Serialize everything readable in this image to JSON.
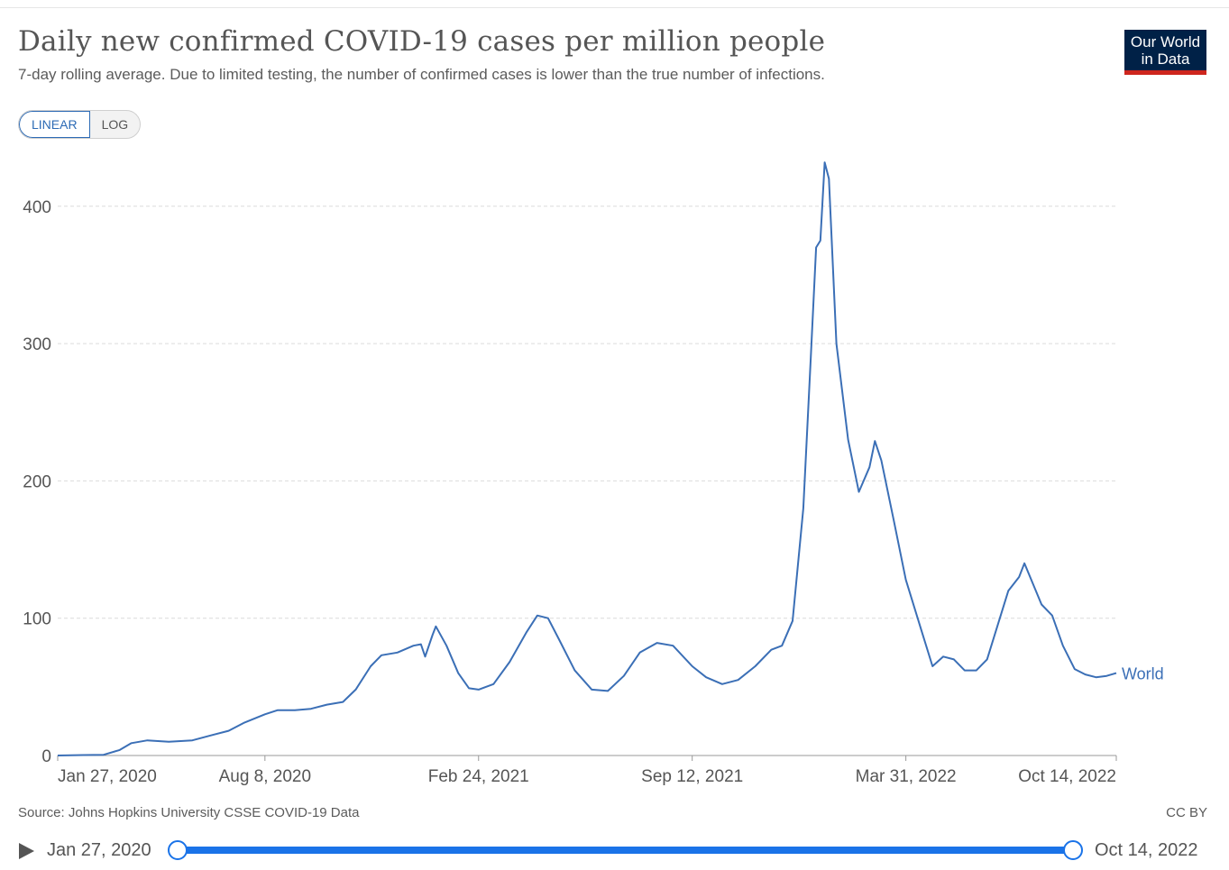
{
  "header": {
    "title": "Daily new confirmed COVID-19 cases per million people",
    "subtitle": "7-day rolling average. Due to limited testing, the number of confirmed cases is lower than the true number of infections.",
    "logo_line1": "Our World",
    "logo_line2": "in Data"
  },
  "controls": {
    "linear_label": "LINEAR",
    "log_label": "LOG",
    "active_scale": "linear"
  },
  "chart_data": {
    "type": "line",
    "title": "Daily new confirmed COVID-19 cases per million people",
    "subtitle": "7-day rolling average. Due to limited testing, the number of confirmed cases is lower than the true number of infections.",
    "xlabel": "",
    "ylabel": "",
    "x_range": [
      "2020-01-27",
      "2022-10-14"
    ],
    "ylim": [
      0,
      430
    ],
    "y_ticks": [
      0,
      100,
      200,
      300,
      400
    ],
    "x_tick_labels": [
      "Jan 27, 2020",
      "Aug 8, 2020",
      "Feb 24, 2021",
      "Sep 12, 2021",
      "Mar 31, 2022",
      "Oct 14, 2022"
    ],
    "x_ticks": [
      "2020-01-27",
      "2020-08-08",
      "2021-02-24",
      "2021-09-12",
      "2022-03-31",
      "2022-10-14"
    ],
    "grid": "horizontal dashed",
    "scale": "linear",
    "series": [
      {
        "name": "World",
        "color": "#3b6fb6",
        "points": [
          [
            "2020-01-27",
            0
          ],
          [
            "2020-02-20",
            0.3
          ],
          [
            "2020-03-10",
            0.5
          ],
          [
            "2020-03-25",
            4
          ],
          [
            "2020-04-05",
            9
          ],
          [
            "2020-04-20",
            11
          ],
          [
            "2020-05-10",
            10
          ],
          [
            "2020-06-01",
            11
          ],
          [
            "2020-06-20",
            15
          ],
          [
            "2020-07-05",
            18
          ],
          [
            "2020-07-20",
            24
          ],
          [
            "2020-08-08",
            30
          ],
          [
            "2020-08-20",
            33
          ],
          [
            "2020-09-05",
            33
          ],
          [
            "2020-09-20",
            34
          ],
          [
            "2020-10-05",
            37
          ],
          [
            "2020-10-20",
            39
          ],
          [
            "2020-11-01",
            48
          ],
          [
            "2020-11-15",
            65
          ],
          [
            "2020-11-25",
            73
          ],
          [
            "2020-12-10",
            75
          ],
          [
            "2020-12-25",
            80
          ],
          [
            "2021-01-01",
            81
          ],
          [
            "2021-01-05",
            72
          ],
          [
            "2021-01-12",
            88
          ],
          [
            "2021-01-15",
            94
          ],
          [
            "2021-01-25",
            80
          ],
          [
            "2021-02-05",
            60
          ],
          [
            "2021-02-15",
            49
          ],
          [
            "2021-02-24",
            48
          ],
          [
            "2021-03-10",
            52
          ],
          [
            "2021-03-25",
            68
          ],
          [
            "2021-04-10",
            90
          ],
          [
            "2021-04-20",
            102
          ],
          [
            "2021-04-30",
            100
          ],
          [
            "2021-05-10",
            85
          ],
          [
            "2021-05-25",
            62
          ],
          [
            "2021-06-10",
            48
          ],
          [
            "2021-06-25",
            47
          ],
          [
            "2021-07-10",
            58
          ],
          [
            "2021-07-25",
            75
          ],
          [
            "2021-08-10",
            82
          ],
          [
            "2021-08-25",
            80
          ],
          [
            "2021-09-12",
            65
          ],
          [
            "2021-09-25",
            57
          ],
          [
            "2021-10-10",
            52
          ],
          [
            "2021-10-25",
            55
          ],
          [
            "2021-11-10",
            65
          ],
          [
            "2021-11-25",
            77
          ],
          [
            "2021-12-05",
            80
          ],
          [
            "2021-12-15",
            98
          ],
          [
            "2021-12-25",
            180
          ],
          [
            "2022-01-01",
            290
          ],
          [
            "2022-01-06",
            370
          ],
          [
            "2022-01-10",
            375
          ],
          [
            "2022-01-14",
            432
          ],
          [
            "2022-01-18",
            420
          ],
          [
            "2022-01-25",
            300
          ],
          [
            "2022-02-05",
            230
          ],
          [
            "2022-02-15",
            192
          ],
          [
            "2022-02-25",
            210
          ],
          [
            "2022-03-02",
            229
          ],
          [
            "2022-03-08",
            215
          ],
          [
            "2022-03-20",
            170
          ],
          [
            "2022-03-31",
            128
          ],
          [
            "2022-04-15",
            90
          ],
          [
            "2022-04-25",
            65
          ],
          [
            "2022-05-05",
            72
          ],
          [
            "2022-05-15",
            70
          ],
          [
            "2022-05-25",
            62
          ],
          [
            "2022-06-05",
            62
          ],
          [
            "2022-06-15",
            70
          ],
          [
            "2022-06-25",
            95
          ],
          [
            "2022-07-05",
            120
          ],
          [
            "2022-07-15",
            130
          ],
          [
            "2022-07-20",
            140
          ],
          [
            "2022-07-28",
            125
          ],
          [
            "2022-08-05",
            110
          ],
          [
            "2022-08-15",
            102
          ],
          [
            "2022-08-25",
            80
          ],
          [
            "2022-09-05",
            63
          ],
          [
            "2022-09-15",
            59
          ],
          [
            "2022-09-25",
            57
          ],
          [
            "2022-10-05",
            58
          ],
          [
            "2022-10-14",
            60
          ]
        ]
      }
    ]
  },
  "footer": {
    "source": "Source: Johns Hopkins University CSSE COVID-19 Data",
    "license": "CC BY"
  },
  "timeline": {
    "start_label": "Jan 27, 2020",
    "end_label": "Oct 14, 2022"
  }
}
